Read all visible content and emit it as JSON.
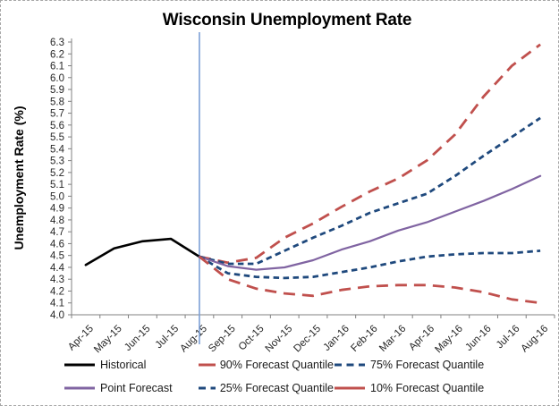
{
  "title": "Wisconsin Unemployment Rate",
  "y_axis_label": "Unemployment Rate (%)",
  "colors": {
    "historical": "#000000",
    "quantile_outer": "#C0504D",
    "quantile_inner": "#1F497D",
    "point_forecast": "#8064A2",
    "forecast_start_line": "#7C9FD6",
    "axis": "#808080",
    "tick_label": "#262626"
  },
  "chart_data": {
    "type": "line",
    "categories": [
      "Apr-15",
      "May-15",
      "Jun-15",
      "Jul-15",
      "Aug-15",
      "Sep-15",
      "Oct-15",
      "Nov-15",
      "Dec-15",
      "Jan-16",
      "Feb-16",
      "Mar-16",
      "Apr-16",
      "May-16",
      "Jun-16",
      "Jul-16",
      "Aug-16"
    ],
    "ylim": [
      4.0,
      6.3
    ],
    "y_tick_step": 0.1,
    "y_ticks": [
      "6.3",
      "6.2",
      "6.1",
      "6.0",
      "5.9",
      "5.8",
      "5.7",
      "5.6",
      "5.5",
      "5.4",
      "5.3",
      "5.2",
      "5.1",
      "5.0",
      "4.9",
      "4.8",
      "4.7",
      "4.6",
      "4.5",
      "4.4",
      "4.3",
      "4.2",
      "4.1",
      "4.0"
    ],
    "grid": false,
    "legend_position": "bottom",
    "forecast_start_category": "Aug-15",
    "forecast_start_line": {
      "at_category": "Aug-15",
      "color": "#7C9FD6"
    },
    "series": [
      {
        "name": "Historical",
        "color": "#000000",
        "style": "solid",
        "width": 2.6,
        "values": [
          4.42,
          4.56,
          4.62,
          4.64,
          4.49,
          null,
          null,
          null,
          null,
          null,
          null,
          null,
          null,
          null,
          null,
          null,
          null
        ]
      },
      {
        "name": "90% Forecast Quantile",
        "color": "#C0504D",
        "style": "long-dash",
        "width": 2.8,
        "values": [
          null,
          null,
          null,
          null,
          4.49,
          4.44,
          4.48,
          4.65,
          4.77,
          4.91,
          5.04,
          5.15,
          5.3,
          5.52,
          5.84,
          6.1,
          6.28
        ]
      },
      {
        "name": "75% Forecast Quantile",
        "color": "#1F497D",
        "style": "dash",
        "width": 2.8,
        "values": [
          null,
          null,
          null,
          null,
          4.49,
          4.43,
          4.43,
          4.54,
          4.65,
          4.75,
          4.86,
          4.94,
          5.02,
          5.17,
          5.34,
          5.5,
          5.66
        ]
      },
      {
        "name": "Point Forecast",
        "color": "#8064A2",
        "style": "solid",
        "width": 2.2,
        "values": [
          null,
          null,
          null,
          null,
          4.49,
          4.41,
          4.38,
          4.4,
          4.46,
          4.55,
          4.62,
          4.71,
          4.78,
          4.87,
          4.96,
          5.06,
          5.17
        ]
      },
      {
        "name": "25% Forecast Quantile",
        "color": "#1F497D",
        "style": "dash",
        "width": 2.8,
        "values": [
          null,
          null,
          null,
          null,
          4.49,
          4.35,
          4.32,
          4.31,
          4.32,
          4.36,
          4.4,
          4.45,
          4.49,
          4.51,
          4.52,
          4.52,
          4.54
        ]
      },
      {
        "name": "10% Forecast Quantile",
        "color": "#C0504D",
        "style": "long-dash",
        "width": 2.8,
        "values": [
          null,
          null,
          null,
          null,
          4.49,
          4.3,
          4.22,
          4.18,
          4.16,
          4.21,
          4.24,
          4.25,
          4.25,
          4.23,
          4.19,
          4.13,
          4.1
        ]
      }
    ]
  },
  "legend": {
    "rows": [
      [
        {
          "label": "Historical",
          "series": 0,
          "swatch": "solid"
        },
        {
          "label": "90% Forecast Quantile",
          "series": 1,
          "swatch": "solid"
        },
        {
          "label": "75% Forecast Quantile",
          "series": 2,
          "swatch": "dash"
        }
      ],
      [
        {
          "label": "Point Forecast",
          "series": 3,
          "swatch": "solid"
        },
        {
          "label": "25% Forecast Quantile",
          "series": 4,
          "swatch": "dash"
        },
        {
          "label": "10% Forecast Quantile",
          "series": 5,
          "swatch": "solid"
        }
      ]
    ]
  }
}
